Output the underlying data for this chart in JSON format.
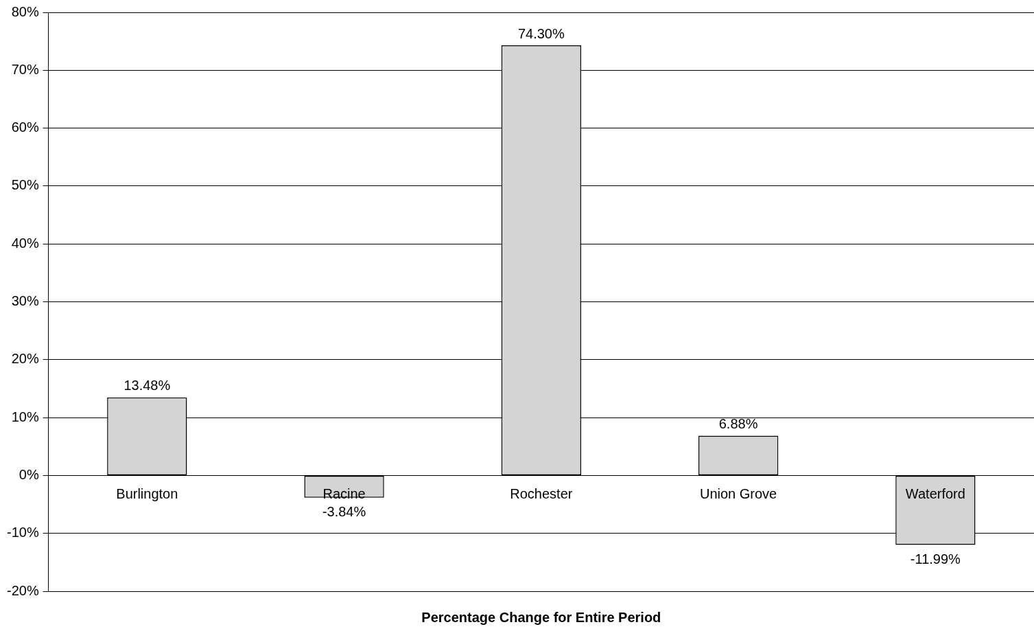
{
  "chart_data": {
    "type": "bar",
    "xlabel": "Percentage Change for Entire Period",
    "categories": [
      "Burlington",
      "Racine",
      "Rochester",
      "Union Grove",
      "Waterford"
    ],
    "values": [
      13.48,
      -3.84,
      74.3,
      6.88,
      -11.99
    ],
    "value_labels": [
      "13.48%",
      "-3.84%",
      "74.30%",
      "6.88%",
      "-11.99%"
    ],
    "color": "#d4d4d4",
    "ylim": [
      -20,
      80
    ],
    "yticks": [
      {
        "value": -20,
        "label": "-20%"
      },
      {
        "value": -10,
        "label": "-10%"
      },
      {
        "value": 0,
        "label": "0%"
      },
      {
        "value": 10,
        "label": "10%"
      },
      {
        "value": 20,
        "label": "20%"
      },
      {
        "value": 30,
        "label": "30%"
      },
      {
        "value": 40,
        "label": "40%"
      },
      {
        "value": 50,
        "label": "50%"
      },
      {
        "value": 60,
        "label": "60%"
      },
      {
        "value": 70,
        "label": "70%"
      },
      {
        "value": 80,
        "label": "80%"
      }
    ],
    "grid": "y",
    "legend": false
  }
}
